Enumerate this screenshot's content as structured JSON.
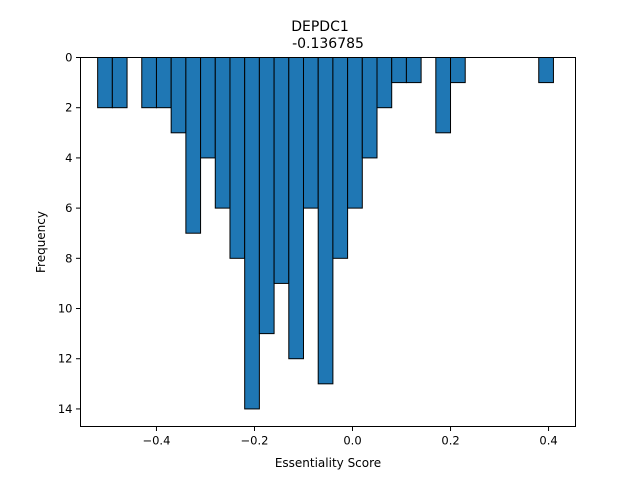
{
  "chart_data": {
    "type": "bar",
    "title": "DEPDC1",
    "subtitle": "-0.136785",
    "xlabel": "Essentiality Score",
    "ylabel": "Frequency",
    "xlim": [
      -0.555,
      0.455
    ],
    "ylim": [
      0,
      14.7
    ],
    "y_inverted": true,
    "grid": false,
    "bin_width": 0.03,
    "xticks": [
      -0.4,
      -0.2,
      0.0,
      0.2,
      0.4
    ],
    "xtick_labels": [
      "−0.4",
      "−0.2",
      "0.0",
      "0.2",
      "0.4"
    ],
    "yticks": [
      0,
      2,
      4,
      6,
      8,
      10,
      12,
      14
    ],
    "ytick_labels": [
      "0",
      "2",
      "4",
      "6",
      "8",
      "10",
      "12",
      "14"
    ],
    "bars": [
      {
        "left": -0.52,
        "value": 2
      },
      {
        "left": -0.49,
        "value": 2
      },
      {
        "left": -0.43,
        "value": 2
      },
      {
        "left": -0.4,
        "value": 2
      },
      {
        "left": -0.37,
        "value": 3
      },
      {
        "left": -0.34,
        "value": 7
      },
      {
        "left": -0.31,
        "value": 4
      },
      {
        "left": -0.28,
        "value": 6
      },
      {
        "left": -0.25,
        "value": 8
      },
      {
        "left": -0.22,
        "value": 14
      },
      {
        "left": -0.19,
        "value": 11
      },
      {
        "left": -0.16,
        "value": 9
      },
      {
        "left": -0.13,
        "value": 12
      },
      {
        "left": -0.1,
        "value": 6
      },
      {
        "left": -0.07,
        "value": 13
      },
      {
        "left": -0.04,
        "value": 8
      },
      {
        "left": -0.01,
        "value": 6
      },
      {
        "left": 0.02,
        "value": 4
      },
      {
        "left": 0.05,
        "value": 2
      },
      {
        "left": 0.08,
        "value": 1
      },
      {
        "left": 0.11,
        "value": 1
      },
      {
        "left": 0.17,
        "value": 3
      },
      {
        "left": 0.2,
        "value": 1
      },
      {
        "left": 0.26,
        "value": 0
      },
      {
        "left": 0.29,
        "value": 0
      },
      {
        "left": 0.32,
        "value": 0
      },
      {
        "left": 0.35,
        "value": 0
      },
      {
        "left": 0.38,
        "value": 1
      }
    ]
  }
}
